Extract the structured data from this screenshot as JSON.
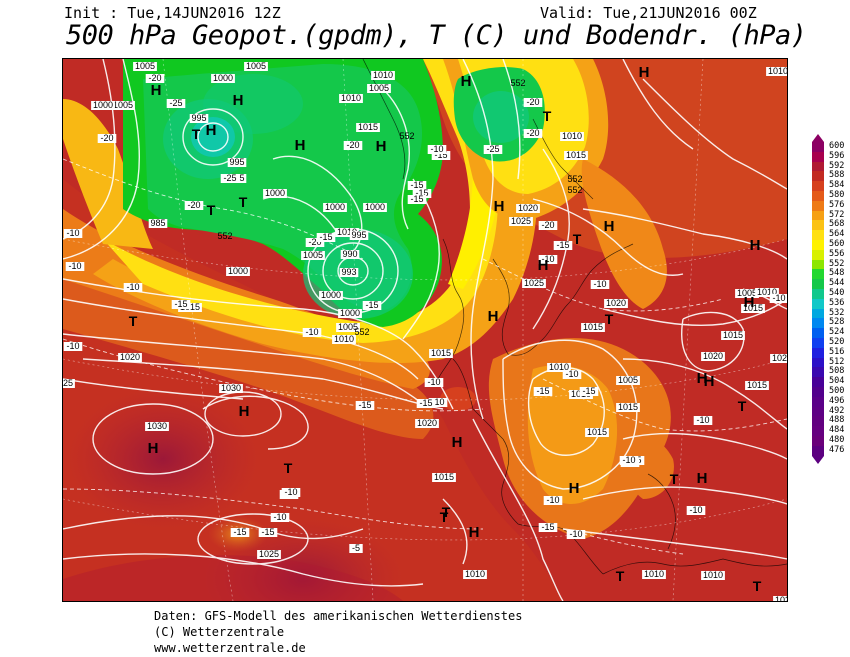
{
  "header": {
    "init": "Init : Tue,14JUN2016 12Z",
    "valid": "Valid: Tue,21JUN2016 00Z",
    "title": "500 hPa Geopot.(gpdm), T (C) und Bodendr. (hPa)"
  },
  "legend": {
    "values": [
      "600",
      "596",
      "592",
      "588",
      "584",
      "580",
      "576",
      "572",
      "568",
      "564",
      "560",
      "556",
      "552",
      "548",
      "544",
      "540",
      "536",
      "532",
      "528",
      "524",
      "520",
      "516",
      "512",
      "508",
      "504",
      "500",
      "496",
      "492",
      "488",
      "484",
      "480",
      "476"
    ],
    "colors": [
      "#8c0063",
      "#a8004e",
      "#b01a33",
      "#c22a22",
      "#d6401e",
      "#e45a19",
      "#ee7a16",
      "#f6a014",
      "#fbc214",
      "#ffe012",
      "#fff200",
      "#d8f000",
      "#8ce600",
      "#22d830",
      "#14c84a",
      "#10c88c",
      "#10c8c8",
      "#00a8e0",
      "#0088f0",
      "#0060f0",
      "#1040f0",
      "#2020e0",
      "#2c10c8",
      "#3a08b0",
      "#480098",
      "#52008c",
      "#5a0088",
      "#5e0084",
      "#620080",
      "#660080",
      "#6a007a",
      "#5c0080"
    ]
  },
  "pressure_labels": [
    "1005",
    "1000",
    "1005",
    "1000",
    "1005",
    "1010",
    "1005",
    "1010",
    "1015",
    "995",
    "995",
    "995",
    "1000",
    "1000",
    "985",
    "1000",
    "1000",
    "1005",
    "1010",
    "1000",
    "995",
    "990",
    "993",
    "1000",
    "1005",
    "1010",
    "1015",
    "1020",
    "1025",
    "1030",
    "1030",
    "1025",
    "1020",
    "1015",
    "1020",
    "1015",
    "1025",
    "1025",
    "1020",
    "1015",
    "1010",
    "1005",
    "1010",
    "1015",
    "1015",
    "1015",
    "1020",
    "1010",
    "1015",
    "1010",
    "1010",
    "1010",
    "1015",
    "1020",
    "1015",
    "1005",
    "1010",
    "1010",
    "1025"
  ],
  "height_labels": [
    "552",
    "552",
    "552",
    "552",
    "552",
    "552"
  ],
  "high_markers": [
    "H",
    "H",
    "H",
    "H",
    "H",
    "H",
    "H",
    "H",
    "H",
    "H",
    "H",
    "H",
    "H",
    "H",
    "H",
    "H",
    "H",
    "H",
    "H",
    "H",
    "H"
  ],
  "thermal_markers": [
    "T",
    "T",
    "T",
    "T",
    "T",
    "T",
    "T",
    "T",
    "T",
    "T",
    "T",
    "T",
    "T",
    "T"
  ],
  "temperature_labels": [
    "-20",
    "-25",
    "-20",
    "-20",
    "-25",
    "-20",
    "-20",
    "-15",
    "-15",
    "-10",
    "-10",
    "-20",
    "-25",
    "-20",
    "-15",
    "-10",
    "-15",
    "-15",
    "-15",
    "-10",
    "-15",
    "-5",
    "-10",
    "-15",
    "-10",
    "-10",
    "-15",
    "-10",
    "-15",
    "-10",
    "-10",
    "-15",
    "-15",
    "-20",
    "-15",
    "-10",
    "-10",
    "-10",
    "-15",
    "-15",
    "-10",
    "-10",
    "-10",
    "-10",
    "-15",
    "-10",
    "-10",
    "-15",
    "-10"
  ],
  "footer": {
    "line1": "Daten: GFS-Modell des amerikanischen Wetterdienstes",
    "line2": "(C) Wetterzentrale",
    "line3": "www.wetterzentrale.de"
  }
}
